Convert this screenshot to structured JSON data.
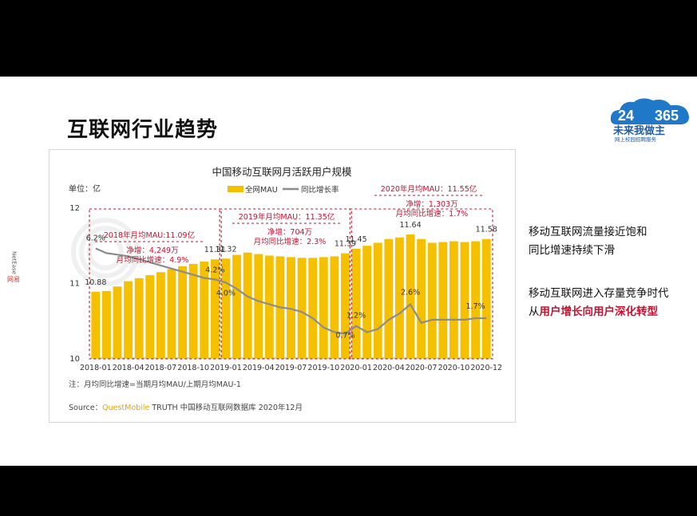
{
  "slide": {
    "title": "互联网行业趋势",
    "logo": {
      "number_left": "24",
      "number_right": "365",
      "name": "未来我做主",
      "slogan": "网上校园招聘服务"
    },
    "watermark": {
      "top": "NetEase",
      "bottom": "网易"
    }
  },
  "side_text": {
    "block1_line1": "移动互联网流量接近饱和",
    "block1_line2": "同比增速持续下滑",
    "block2_line1": "移动互联网进入存量竞争时代",
    "block2_prefix": "从",
    "block2_highlight": "用户增长向用户深化转型"
  },
  "chart_data": {
    "type": "bar",
    "title": "中国移动互联网月活跃用户规模",
    "unit_label": "单位：亿",
    "legend": [
      "全网MAU",
      "同比增长率"
    ],
    "ylim": [
      10,
      12
    ],
    "y_ticks": [
      "12",
      "11",
      "10"
    ],
    "x_tick_labels": [
      "2018-01",
      "2018-04",
      "2018-07",
      "2018-10",
      "2019-01",
      "2019-04",
      "2019-07",
      "2019-10",
      "2020-01",
      "2020-04",
      "2020-07",
      "2020-10",
      "2020-12"
    ],
    "series": [
      {
        "name": "全网MAU",
        "type": "bar",
        "color": "#f5c000",
        "values": [
          10.88,
          10.89,
          10.95,
          11.02,
          11.06,
          11.1,
          11.14,
          11.18,
          11.22,
          11.25,
          11.28,
          11.31,
          11.32,
          11.37,
          11.4,
          11.38,
          11.36,
          11.35,
          11.34,
          11.33,
          11.33,
          11.34,
          11.35,
          11.39,
          11.45,
          11.49,
          11.53,
          11.58,
          11.6,
          11.64,
          11.58,
          11.53,
          11.54,
          11.55,
          11.54,
          11.55,
          11.58
        ]
      },
      {
        "name": "同比增长率",
        "type": "line",
        "color": "#8c8c8c",
        "values": [
          6.2,
          5.9,
          5.8,
          5.7,
          5.5,
          5.3,
          5.1,
          4.9,
          4.7,
          4.5,
          4.3,
          4.2,
          4.0,
          3.6,
          3.1,
          2.8,
          2.6,
          2.4,
          2.3,
          2.1,
          1.7,
          1.1,
          0.8,
          0.7,
          1.2,
          0.8,
          1.0,
          1.6,
          2.0,
          2.6,
          1.4,
          1.6,
          1.6,
          1.6,
          1.6,
          1.7,
          1.7
        ]
      }
    ],
    "value_labels": [
      {
        "text": "10.88"
      },
      {
        "text": "11.31"
      },
      {
        "text": "11.32"
      },
      {
        "text": "11.39"
      },
      {
        "text": "11.45"
      },
      {
        "text": "11.64"
      },
      {
        "text": "11.58"
      }
    ],
    "rate_labels": [
      {
        "text": "6.2%"
      },
      {
        "text": "4.2%"
      },
      {
        "text": "4.0%"
      },
      {
        "text": "0.7%"
      },
      {
        "text": "1.2%"
      },
      {
        "text": "2.6%"
      },
      {
        "text": "1.7%"
      }
    ],
    "annotations": [
      {
        "title": "2018年月均MAU:11.09亿",
        "line1": "净增：4,249万",
        "line2": "月均同比增速：4.9%"
      },
      {
        "title": "2019年月均MAU：11.35亿",
        "line1": "净增：704万",
        "line2": "月均同比增速：2.3%"
      },
      {
        "title": "2020年月均MAU：11.55亿",
        "line1": "净增：1,303万",
        "line2": "月均同比增速：1.7%"
      }
    ],
    "note": "注：月均同比增速=当期月均MAU/上期月均MAU-1",
    "source_prefix": "Source：",
    "source_brand": "QuestMobile",
    "source_rest": " TRUTH 中国移动互联网数据库 2020年12月"
  }
}
